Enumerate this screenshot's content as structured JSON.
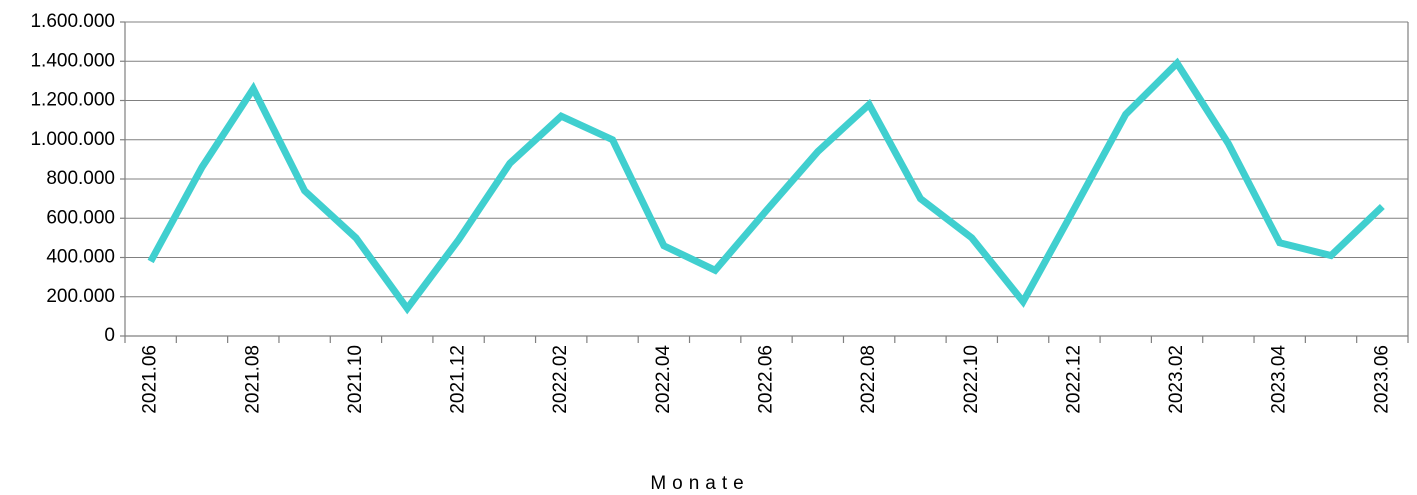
{
  "chart_data": {
    "type": "line",
    "x_label": "Monate",
    "categories": [
      "2021.06",
      null,
      "2021.08",
      null,
      "2021.10",
      null,
      "2021.12",
      null,
      "2022.02",
      null,
      "2022.04",
      null,
      "2022.06",
      null,
      "2022.08",
      null,
      "2022.10",
      null,
      "2022.12",
      null,
      "2023.02",
      null,
      "2023.04",
      null,
      "2023.06"
    ],
    "series": [
      {
        "name": null,
        "color": "#40cfcf",
        "values": [
          380000,
          860000,
          1260000,
          740000,
          500000,
          140000,
          490000,
          880000,
          1120000,
          1000000,
          460000,
          335000,
          640000,
          940000,
          1180000,
          700000,
          500000,
          175000,
          650000,
          1130000,
          1390000,
          980000,
          475000,
          410000,
          660000
        ]
      }
    ],
    "ylim": [
      0,
      1600000
    ],
    "yticks": [
      0,
      {
        "value": 200000,
        "label": "200.000"
      },
      {
        "value": 400000,
        "label": "400.000"
      },
      {
        "value": 600000,
        "label": "600.000"
      },
      {
        "value": 800000,
        "label": "800.000"
      },
      {
        "value": 1000000,
        "label": "1.000.000"
      },
      {
        "value": 1200000,
        "label": "1.200.000"
      },
      {
        "value": 1400000,
        "label": "1.400.000"
      },
      {
        "value": 1600000,
        "label": "1.600.000"
      }
    ],
    "grid": true
  }
}
